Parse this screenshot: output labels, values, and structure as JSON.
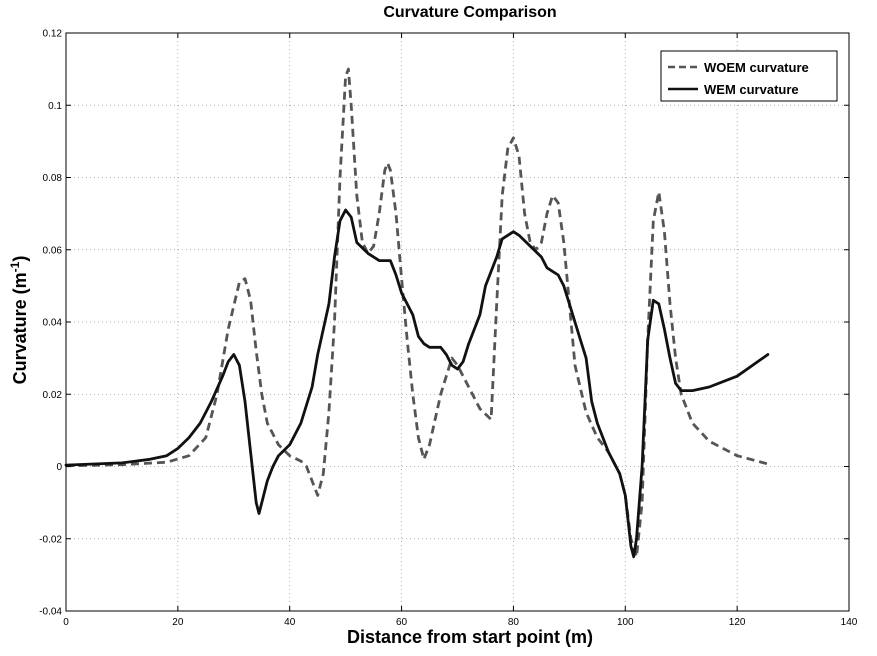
{
  "chart_data": {
    "type": "line",
    "title": "Curvature Comparison",
    "xlabel": "Distance from start point (m)",
    "ylabel": "Curvature (m",
    "ylabel_superscript": "-1",
    "ylabel_suffix": ")",
    "xlim": [
      0,
      140
    ],
    "ylim": [
      -0.04,
      0.12
    ],
    "xticks": [
      "0",
      "20",
      "40",
      "60",
      "80",
      "100",
      "120",
      "140"
    ],
    "yticks": [
      "-0.04",
      "-0.02",
      "0",
      "0.02",
      "0.04",
      "0.06",
      "0.08",
      "0.1",
      "0.12"
    ],
    "grid": true,
    "legend_position": "top-right",
    "series": [
      {
        "name": "WOEM curvature",
        "style": "dashed",
        "color": "#555555",
        "points": [
          [
            0,
            0.0002
          ],
          [
            10,
            0.0005
          ],
          [
            18,
            0.0012
          ],
          [
            22,
            0.003
          ],
          [
            25,
            0.008
          ],
          [
            27,
            0.02
          ],
          [
            29,
            0.038
          ],
          [
            31,
            0.051
          ],
          [
            32,
            0.052
          ],
          [
            33,
            0.046
          ],
          [
            34,
            0.032
          ],
          [
            35,
            0.02
          ],
          [
            36,
            0.012
          ],
          [
            38,
            0.006
          ],
          [
            40,
            0.003
          ],
          [
            42,
            0.0015
          ],
          [
            43,
            0.0
          ],
          [
            44.5,
            -0.006
          ],
          [
            45,
            -0.008
          ],
          [
            46,
            -0.002
          ],
          [
            47,
            0.015
          ],
          [
            48,
            0.04
          ],
          [
            49,
            0.08
          ],
          [
            50,
            0.108
          ],
          [
            50.5,
            0.11
          ],
          [
            51,
            0.1
          ],
          [
            52,
            0.075
          ],
          [
            53,
            0.062
          ],
          [
            54,
            0.059
          ],
          [
            55,
            0.061
          ],
          [
            56,
            0.07
          ],
          [
            57,
            0.082
          ],
          [
            57.5,
            0.084
          ],
          [
            58,
            0.082
          ],
          [
            59,
            0.07
          ],
          [
            60,
            0.052
          ],
          [
            61,
            0.035
          ],
          [
            62,
            0.02
          ],
          [
            63,
            0.008
          ],
          [
            64,
            0.002
          ],
          [
            65,
            0.006
          ],
          [
            66,
            0.013
          ],
          [
            67,
            0.02
          ],
          [
            68,
            0.025
          ],
          [
            69,
            0.03
          ],
          [
            70,
            0.028
          ],
          [
            72,
            0.022
          ],
          [
            74,
            0.016
          ],
          [
            76,
            0.013
          ],
          [
            77,
            0.045
          ],
          [
            78,
            0.075
          ],
          [
            79,
            0.088
          ],
          [
            80,
            0.091
          ],
          [
            81,
            0.086
          ],
          [
            82,
            0.07
          ],
          [
            83,
            0.062
          ],
          [
            84,
            0.06
          ],
          [
            85,
            0.062
          ],
          [
            86,
            0.07
          ],
          [
            87,
            0.075
          ],
          [
            88,
            0.073
          ],
          [
            89,
            0.062
          ],
          [
            90,
            0.045
          ],
          [
            91,
            0.028
          ],
          [
            93,
            0.015
          ],
          [
            95,
            0.008
          ],
          [
            97,
            0.004
          ],
          [
            99,
            -0.002
          ],
          [
            100,
            -0.008
          ],
          [
            101,
            -0.02
          ],
          [
            102,
            -0.025
          ],
          [
            103,
            -0.01
          ],
          [
            104,
            0.035
          ],
          [
            105,
            0.068
          ],
          [
            106,
            0.076
          ],
          [
            107,
            0.065
          ],
          [
            108,
            0.045
          ],
          [
            109,
            0.03
          ],
          [
            110,
            0.02
          ],
          [
            112,
            0.012
          ],
          [
            115,
            0.007
          ],
          [
            120,
            0.003
          ],
          [
            126,
            0.0005
          ]
        ]
      },
      {
        "name": "WEM curvature",
        "style": "solid",
        "color": "#111111",
        "points": [
          [
            0,
            0.0004
          ],
          [
            10,
            0.001
          ],
          [
            15,
            0.002
          ],
          [
            18,
            0.003
          ],
          [
            20,
            0.005
          ],
          [
            22,
            0.008
          ],
          [
            24,
            0.012
          ],
          [
            26,
            0.018
          ],
          [
            28,
            0.025
          ],
          [
            29,
            0.029
          ],
          [
            30,
            0.031
          ],
          [
            31,
            0.028
          ],
          [
            32,
            0.018
          ],
          [
            33,
            0.004
          ],
          [
            34,
            -0.01
          ],
          [
            34.5,
            -0.013
          ],
          [
            35,
            -0.01
          ],
          [
            36,
            -0.004
          ],
          [
            37,
            0.0
          ],
          [
            38,
            0.003
          ],
          [
            40,
            0.006
          ],
          [
            42,
            0.012
          ],
          [
            44,
            0.022
          ],
          [
            45,
            0.031
          ],
          [
            47,
            0.045
          ],
          [
            48,
            0.058
          ],
          [
            49,
            0.068
          ],
          [
            50,
            0.071
          ],
          [
            51,
            0.069
          ],
          [
            52,
            0.062
          ],
          [
            54,
            0.059
          ],
          [
            56,
            0.057
          ],
          [
            58,
            0.057
          ],
          [
            59,
            0.053
          ],
          [
            60,
            0.048
          ],
          [
            62,
            0.042
          ],
          [
            63,
            0.036
          ],
          [
            64,
            0.034
          ],
          [
            65,
            0.033
          ],
          [
            66,
            0.033
          ],
          [
            67,
            0.033
          ],
          [
            68,
            0.031
          ],
          [
            69,
            0.028
          ],
          [
            70,
            0.027
          ],
          [
            71,
            0.029
          ],
          [
            72,
            0.034
          ],
          [
            74,
            0.042
          ],
          [
            75,
            0.05
          ],
          [
            77,
            0.058
          ],
          [
            78,
            0.063
          ],
          [
            80,
            0.065
          ],
          [
            81,
            0.064
          ],
          [
            83,
            0.061
          ],
          [
            85,
            0.058
          ],
          [
            86,
            0.055
          ],
          [
            87,
            0.054
          ],
          [
            88,
            0.053
          ],
          [
            89,
            0.05
          ],
          [
            90,
            0.045
          ],
          [
            92,
            0.035
          ],
          [
            93,
            0.03
          ],
          [
            94,
            0.018
          ],
          [
            95,
            0.012
          ],
          [
            96,
            0.008
          ],
          [
            97,
            0.004
          ],
          [
            99,
            -0.002
          ],
          [
            100,
            -0.008
          ],
          [
            101,
            -0.022
          ],
          [
            101.5,
            -0.025
          ],
          [
            102,
            -0.02
          ],
          [
            103,
            0.0
          ],
          [
            104,
            0.035
          ],
          [
            105,
            0.046
          ],
          [
            106,
            0.045
          ],
          [
            107,
            0.038
          ],
          [
            108,
            0.03
          ],
          [
            109,
            0.023
          ],
          [
            110,
            0.021
          ],
          [
            112,
            0.021
          ],
          [
            115,
            0.022
          ],
          [
            120,
            0.025
          ],
          [
            125.5,
            0.031
          ]
        ]
      }
    ]
  }
}
